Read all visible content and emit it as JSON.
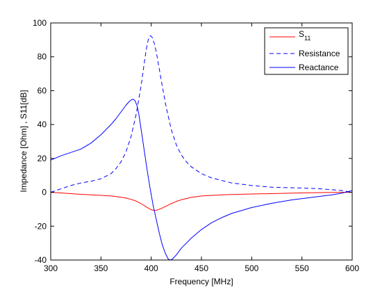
{
  "chart_data": {
    "type": "line",
    "title": "",
    "xlabel": "Frequency [MHz]",
    "ylabel": "Impedance [Ohm] , S11[dB]",
    "xlim": [
      300,
      600
    ],
    "ylim": [
      -40,
      100
    ],
    "xticks": [
      300,
      350,
      400,
      450,
      500,
      550,
      600
    ],
    "yticks": [
      -40,
      -20,
      0,
      20,
      40,
      60,
      80,
      100
    ],
    "grid": false,
    "legend_position": "top-right",
    "series": [
      {
        "name": "S11",
        "name_main": "S",
        "name_sub": "11",
        "color": "#ff0000",
        "dash": "solid",
        "x": [
          300,
          310,
          320,
          330,
          340,
          350,
          360,
          370,
          375,
          380,
          385,
          390,
          395,
          400,
          403,
          405,
          410,
          415,
          420,
          425,
          430,
          440,
          450,
          460,
          480,
          500,
          520,
          540,
          560,
          580,
          600
        ],
        "y": [
          0,
          -0.4,
          -0.8,
          -1.2,
          -1.5,
          -1.8,
          -2.2,
          -2.9,
          -3.4,
          -4.2,
          -5.2,
          -6.7,
          -8.6,
          -10.3,
          -10.8,
          -10.6,
          -9.6,
          -8.1,
          -6.7,
          -5.4,
          -4.4,
          -3.0,
          -2.2,
          -1.8,
          -1.3,
          -1.0,
          -0.8,
          -0.5,
          -0.3,
          -0.1,
          0
        ]
      },
      {
        "name": "Resistance",
        "color": "#0000ff",
        "dash": "dashed",
        "x": [
          300,
          310,
          320,
          330,
          340,
          350,
          360,
          365,
          370,
          375,
          380,
          385,
          390,
          393,
          395,
          397,
          399,
          401,
          403,
          405,
          408,
          410,
          415,
          420,
          425,
          430,
          435,
          440,
          450,
          460,
          470,
          480,
          500,
          520,
          550,
          570,
          590,
          600
        ],
        "y": [
          0,
          2,
          4,
          5.5,
          6.5,
          8,
          11,
          14,
          18,
          24,
          33,
          46,
          63,
          76,
          84,
          90,
          92.5,
          91.5,
          88,
          83,
          73,
          66,
          50,
          37,
          28,
          22,
          18,
          15,
          11,
          8.5,
          7,
          5.5,
          4,
          3,
          2.5,
          2,
          1,
          0
        ]
      },
      {
        "name": "Reactance",
        "color": "#0000ff",
        "dash": "solid",
        "x": [
          300,
          310,
          320,
          330,
          340,
          350,
          360,
          365,
          370,
          375,
          378,
          380,
          382,
          384,
          386,
          388,
          390,
          393,
          396,
          399,
          402,
          405,
          408,
          411,
          414,
          417,
          419,
          421,
          425,
          430,
          440,
          450,
          460,
          470,
          480,
          500,
          520,
          540,
          560,
          580,
          590,
          600
        ],
        "y": [
          19,
          21.5,
          23.5,
          25.5,
          29,
          34,
          40,
          43.5,
          47.5,
          51.5,
          53.5,
          54.5,
          55,
          54,
          51,
          45,
          37,
          25,
          13,
          2,
          -8,
          -16,
          -24,
          -31,
          -36,
          -39.5,
          -40,
          -39.5,
          -37,
          -33,
          -27,
          -22,
          -18,
          -15,
          -12.5,
          -9,
          -6.5,
          -4.5,
          -3,
          -1.5,
          -0.5,
          1
        ]
      }
    ]
  }
}
